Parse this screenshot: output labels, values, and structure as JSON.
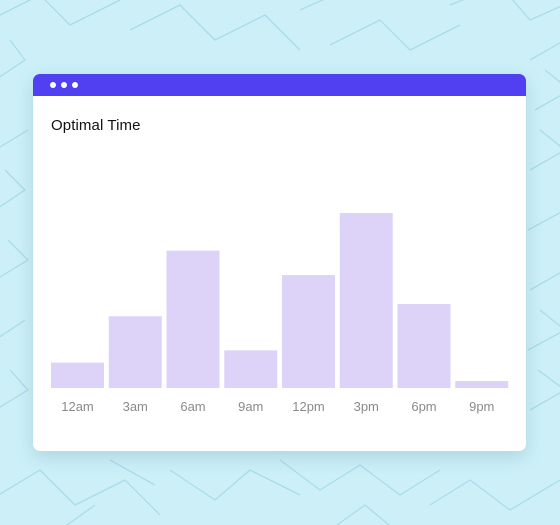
{
  "window": {
    "accent": "#5040f2"
  },
  "chart_data": {
    "type": "bar",
    "title": "Optimal Time",
    "categories": [
      "12am",
      "3am",
      "6am",
      "9am",
      "12pm",
      "3pm",
      "6pm",
      "9pm"
    ],
    "values": [
      14.5,
      41,
      78.5,
      21.5,
      64.5,
      100,
      48,
      4
    ],
    "ylim": [
      0,
      100
    ],
    "xlabel": "",
    "ylabel": "",
    "grid": false,
    "bar_color": "#ddd3f8",
    "label_color": "#8a8a8a"
  }
}
